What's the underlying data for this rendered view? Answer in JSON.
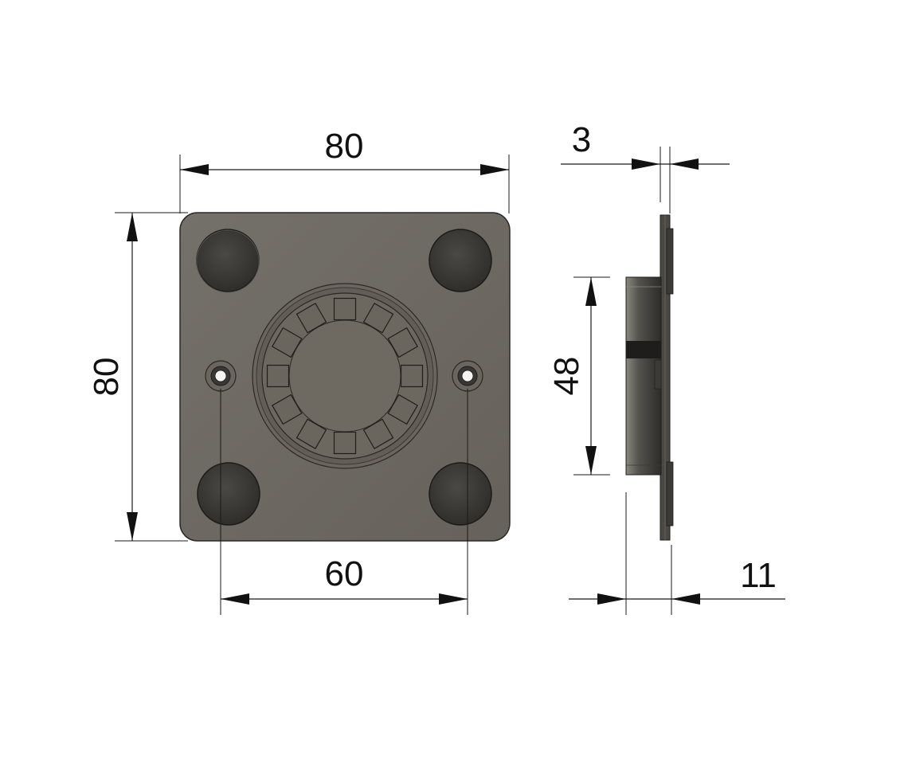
{
  "dimensions": {
    "front_width": "80",
    "front_height": "80",
    "hole_spacing": "60",
    "plate_thickness": "3",
    "boss_diameter": "48",
    "total_depth": "11"
  },
  "colors": {
    "plate": "#6e6a62",
    "plate_edge": "#2b2926",
    "magnet": "#3c3b37",
    "magnet_edge": "#1c1b19",
    "boss_ring": "#666259",
    "inner_disc": "#6c6860",
    "side_dark": "#2d2c29",
    "side_mid": "#55524c",
    "line": "#1a1a1a"
  }
}
